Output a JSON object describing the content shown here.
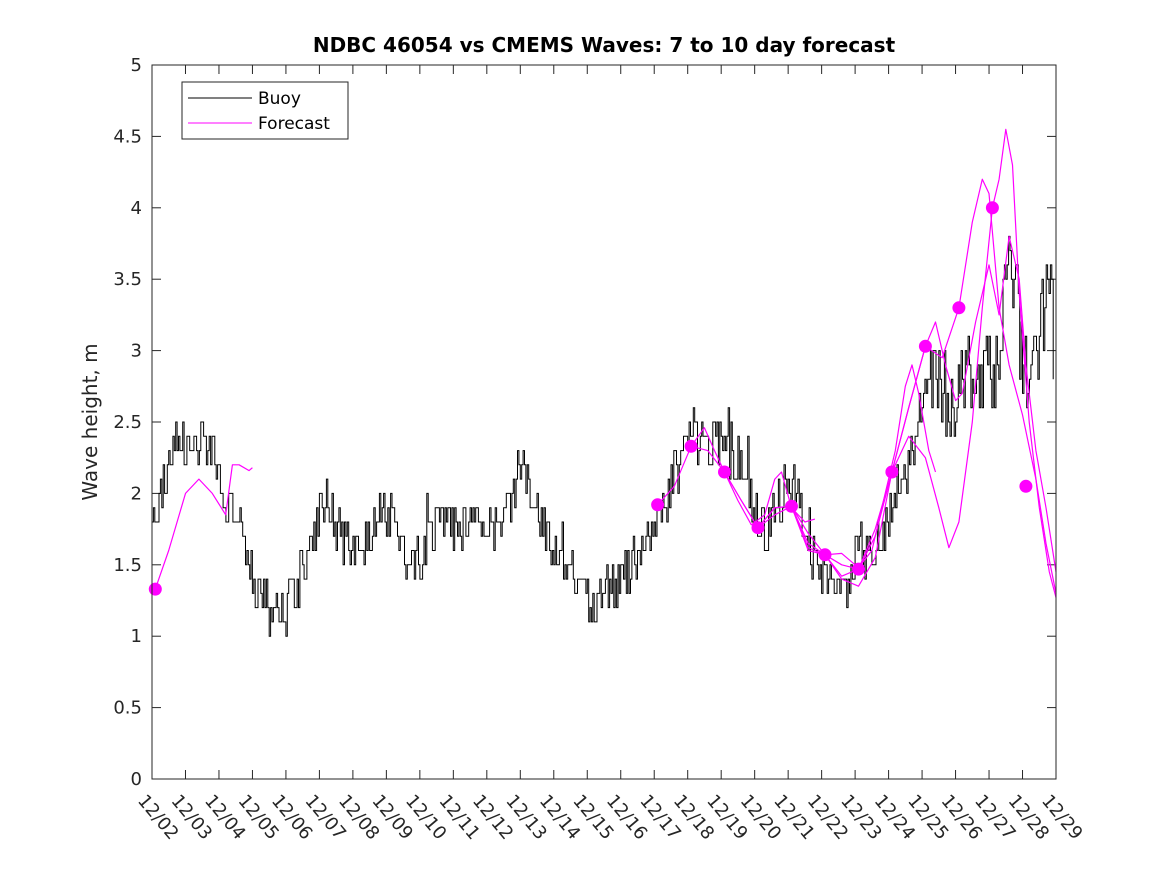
{
  "chart_data": {
    "type": "line",
    "title": "NDBC 46054 vs CMEMS Waves: 7 to 10 day forecast",
    "xlabel": "",
    "ylabel": "Wave height, m",
    "xlim": [
      0,
      27
    ],
    "ylim": [
      0,
      5
    ],
    "yticks": [
      "0",
      "0.5",
      "1",
      "1.5",
      "2",
      "2.5",
      "3",
      "3.5",
      "4",
      "4.5",
      "5"
    ],
    "xticks": [
      "12/02",
      "12/03",
      "12/04",
      "12/05",
      "12/06",
      "12/07",
      "12/08",
      "12/09",
      "12/10",
      "12/11",
      "12/12",
      "12/13",
      "12/14",
      "12/15",
      "12/16",
      "12/17",
      "12/18",
      "12/19",
      "12/20",
      "12/21",
      "12/22",
      "12/23",
      "12/24",
      "12/25",
      "12/26",
      "12/27",
      "12/28",
      "12/29"
    ],
    "colors": {
      "buoy": "#000000",
      "forecast": "#ff00ff"
    },
    "legend": {
      "position": "top-left",
      "entries": [
        "Buoy",
        "Forecast"
      ]
    },
    "buoy_trend": [
      [
        0,
        1.8
      ],
      [
        0.3,
        2.0
      ],
      [
        0.6,
        2.3
      ],
      [
        0.9,
        2.4
      ],
      [
        1.2,
        2.2
      ],
      [
        1.5,
        2.4
      ],
      [
        1.8,
        2.3
      ],
      [
        2.1,
        2.0
      ],
      [
        2.4,
        1.9
      ],
      [
        2.7,
        1.75
      ],
      [
        3.0,
        1.4
      ],
      [
        3.3,
        1.3
      ],
      [
        3.6,
        1.15
      ],
      [
        4.0,
        1.2
      ],
      [
        4.3,
        1.35
      ],
      [
        4.6,
        1.55
      ],
      [
        4.9,
        1.8
      ],
      [
        5.2,
        1.95
      ],
      [
        5.5,
        1.8
      ],
      [
        5.8,
        1.65
      ],
      [
        6.1,
        1.6
      ],
      [
        6.4,
        1.7
      ],
      [
        6.7,
        1.8
      ],
      [
        7.0,
        1.9
      ],
      [
        7.3,
        1.8
      ],
      [
        7.6,
        1.55
      ],
      [
        8.0,
        1.5
      ],
      [
        8.3,
        1.65
      ],
      [
        8.6,
        1.85
      ],
      [
        8.9,
        1.8
      ],
      [
        9.2,
        1.7
      ],
      [
        9.5,
        1.8
      ],
      [
        9.8,
        1.85
      ],
      [
        10.1,
        1.75
      ],
      [
        10.4,
        1.8
      ],
      [
        10.7,
        2.0
      ],
      [
        11.0,
        2.2
      ],
      [
        11.3,
        2.05
      ],
      [
        11.6,
        1.8
      ],
      [
        11.9,
        1.65
      ],
      [
        12.2,
        1.6
      ],
      [
        12.5,
        1.5
      ],
      [
        12.8,
        1.3
      ],
      [
        13.1,
        1.2
      ],
      [
        13.4,
        1.2
      ],
      [
        13.7,
        1.3
      ],
      [
        14.0,
        1.4
      ],
      [
        14.3,
        1.5
      ],
      [
        14.6,
        1.6
      ],
      [
        14.9,
        1.75
      ],
      [
        15.2,
        1.85
      ],
      [
        15.5,
        2.1
      ],
      [
        15.8,
        2.25
      ],
      [
        16.1,
        2.45
      ],
      [
        16.4,
        2.4
      ],
      [
        16.7,
        2.3
      ],
      [
        17.0,
        2.35
      ],
      [
        17.3,
        2.25
      ],
      [
        17.6,
        2.2
      ],
      [
        17.9,
        1.9
      ],
      [
        18.2,
        1.75
      ],
      [
        18.5,
        1.8
      ],
      [
        18.8,
        2.0
      ],
      [
        19.1,
        2.1
      ],
      [
        19.4,
        1.9
      ],
      [
        19.7,
        1.6
      ],
      [
        20.0,
        1.5
      ],
      [
        20.3,
        1.4
      ],
      [
        20.6,
        1.3
      ],
      [
        20.9,
        1.5
      ],
      [
        21.2,
        1.6
      ],
      [
        21.5,
        1.55
      ],
      [
        21.8,
        1.65
      ],
      [
        22.1,
        1.9
      ],
      [
        22.4,
        2.1
      ],
      [
        22.7,
        2.25
      ],
      [
        23.0,
        2.6
      ],
      [
        23.3,
        2.85
      ],
      [
        23.6,
        2.7
      ],
      [
        23.9,
        2.65
      ],
      [
        24.2,
        2.8
      ],
      [
        24.5,
        2.9
      ],
      [
        24.8,
        2.85
      ],
      [
        25.1,
        2.8
      ],
      [
        25.4,
        3.25
      ],
      [
        25.6,
        3.9
      ],
      [
        25.8,
        3.4
      ],
      [
        26.0,
        2.85
      ],
      [
        26.2,
        2.8
      ],
      [
        26.4,
        2.95
      ],
      [
        26.6,
        3.2
      ],
      [
        26.8,
        3.5
      ],
      [
        26.95,
        2.9
      ]
    ],
    "buoy_range": [
      0,
      26.95
    ],
    "buoy_noise": 0.18,
    "forecast_series": [
      {
        "name": "Forecast",
        "points": [
          [
            0.1,
            1.33
          ],
          [
            0.5,
            1.6
          ],
          [
            1.0,
            2.0
          ],
          [
            1.4,
            2.1
          ],
          [
            1.8,
            2.0
          ],
          [
            2.2,
            1.85
          ],
          [
            2.4,
            2.2
          ],
          [
            2.6,
            2.2
          ],
          [
            2.9,
            2.16
          ],
          [
            3.0,
            2.18
          ]
        ]
      },
      {
        "name": "Forecast",
        "points": [
          [
            15.1,
            1.92
          ],
          [
            15.6,
            2.05
          ],
          [
            16.1,
            2.33
          ],
          [
            16.5,
            2.46
          ],
          [
            16.8,
            2.3
          ],
          [
            17.1,
            2.15
          ],
          [
            17.5,
            1.95
          ],
          [
            17.9,
            1.78
          ],
          [
            18.3,
            1.85
          ],
          [
            18.6,
            2.1
          ],
          [
            18.8,
            2.15
          ],
          [
            19.1,
            1.9
          ],
          [
            19.5,
            1.8
          ],
          [
            19.8,
            1.82
          ]
        ]
      },
      {
        "name": "Forecast",
        "points": [
          [
            16.1,
            2.33
          ],
          [
            16.6,
            2.3
          ],
          [
            17.1,
            2.15
          ],
          [
            17.6,
            1.95
          ],
          [
            18.1,
            1.76
          ],
          [
            18.6,
            1.85
          ],
          [
            19.1,
            1.91
          ],
          [
            19.6,
            1.72
          ],
          [
            20.1,
            1.57
          ],
          [
            20.6,
            1.58
          ],
          [
            21.1,
            1.48
          ],
          [
            21.5,
            1.6
          ],
          [
            21.9,
            2.0
          ],
          [
            22.2,
            2.3
          ],
          [
            22.5,
            2.75
          ],
          [
            22.7,
            2.9
          ],
          [
            22.9,
            2.7
          ],
          [
            23.2,
            2.3
          ],
          [
            23.4,
            2.15
          ]
        ]
      },
      {
        "name": "Forecast",
        "points": [
          [
            17.1,
            2.15
          ],
          [
            17.6,
            1.95
          ],
          [
            18.1,
            1.76
          ],
          [
            18.6,
            1.9
          ],
          [
            19.1,
            1.91
          ],
          [
            19.6,
            1.65
          ],
          [
            20.1,
            1.57
          ],
          [
            20.6,
            1.5
          ],
          [
            21.1,
            1.47
          ],
          [
            21.6,
            1.75
          ],
          [
            22.1,
            2.15
          ],
          [
            22.6,
            2.6
          ],
          [
            23.1,
            3.03
          ],
          [
            23.4,
            3.2
          ],
          [
            23.7,
            2.9
          ],
          [
            24.0,
            2.65
          ],
          [
            24.2,
            2.7
          ],
          [
            24.6,
            3.2
          ],
          [
            25.0,
            3.6
          ],
          [
            25.3,
            3.25
          ],
          [
            25.6,
            3.8
          ],
          [
            25.9,
            3.5
          ],
          [
            26.1,
            2.9
          ],
          [
            26.4,
            2.3
          ],
          [
            26.7,
            1.9
          ],
          [
            27.0,
            1.45
          ]
        ]
      },
      {
        "name": "Forecast",
        "points": [
          [
            18.1,
            1.76
          ],
          [
            18.6,
            1.9
          ],
          [
            19.1,
            1.91
          ],
          [
            19.6,
            1.62
          ],
          [
            20.1,
            1.57
          ],
          [
            20.6,
            1.4
          ],
          [
            21.1,
            1.35
          ],
          [
            21.6,
            1.55
          ],
          [
            22.1,
            2.15
          ],
          [
            22.6,
            2.6
          ],
          [
            23.1,
            3.03
          ],
          [
            23.6,
            2.95
          ],
          [
            24.1,
            3.3
          ],
          [
            24.5,
            3.9
          ],
          [
            24.8,
            4.2
          ],
          [
            25.0,
            4.1
          ],
          [
            25.3,
            3.3
          ],
          [
            25.6,
            2.9
          ],
          [
            26.0,
            2.55
          ],
          [
            26.4,
            2.1
          ],
          [
            26.7,
            1.65
          ],
          [
            27.0,
            1.3
          ]
        ]
      },
      {
        "name": "Forecast",
        "points": [
          [
            19.1,
            1.91
          ],
          [
            19.6,
            1.6
          ],
          [
            20.1,
            1.57
          ],
          [
            20.6,
            1.42
          ],
          [
            21.1,
            1.47
          ],
          [
            21.6,
            1.7
          ],
          [
            22.1,
            2.15
          ],
          [
            22.6,
            2.4
          ],
          [
            23.1,
            2.25
          ],
          [
            23.5,
            1.9
          ],
          [
            23.8,
            1.62
          ],
          [
            24.1,
            1.8
          ],
          [
            24.5,
            2.5
          ],
          [
            24.8,
            3.3
          ],
          [
            25.1,
            4.0
          ],
          [
            25.3,
            4.2
          ],
          [
            25.5,
            4.55
          ],
          [
            25.7,
            4.3
          ],
          [
            25.9,
            3.4
          ],
          [
            26.2,
            2.5
          ],
          [
            26.5,
            1.9
          ],
          [
            26.8,
            1.45
          ],
          [
            27.0,
            1.27
          ]
        ]
      }
    ],
    "forecast_markers": [
      [
        0.1,
        1.33
      ],
      [
        15.1,
        1.92
      ],
      [
        16.1,
        2.33
      ],
      [
        17.1,
        2.15
      ],
      [
        18.1,
        1.76
      ],
      [
        19.1,
        1.91
      ],
      [
        20.1,
        1.57
      ],
      [
        21.1,
        1.47
      ],
      [
        22.1,
        2.15
      ],
      [
        23.1,
        3.03
      ],
      [
        24.1,
        3.3
      ],
      [
        25.1,
        4.0
      ],
      [
        26.1,
        2.05
      ]
    ]
  }
}
